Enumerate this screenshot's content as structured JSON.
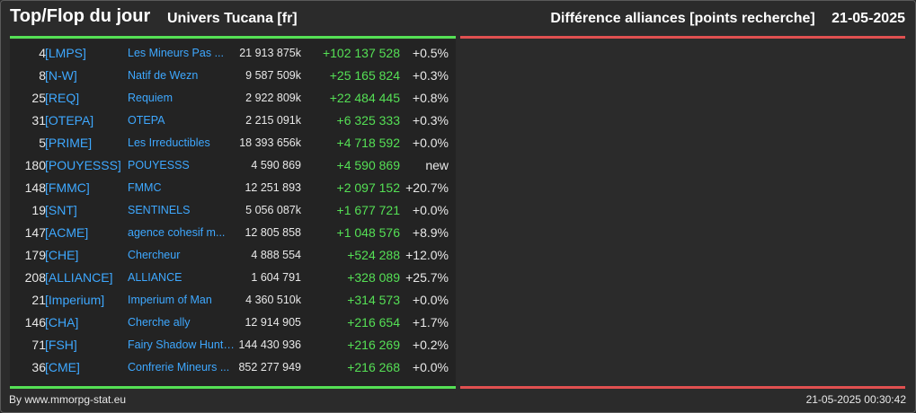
{
  "header": {
    "title": "Top/Flop du jour",
    "universe": "Univers Tucana [fr]",
    "category": "Différence alliances [points recherche]",
    "date": "21-05-2025"
  },
  "rows": [
    {
      "rank": "4",
      "tag": "[LMPS]",
      "name": "Les Mineurs Pas ...",
      "points": "21 913 875k",
      "diff": "+102 137 528",
      "pct": "+0.5%"
    },
    {
      "rank": "8",
      "tag": "[N-W]",
      "name": "Natif de Wezn",
      "points": "9 587 509k",
      "diff": "+25 165 824",
      "pct": "+0.3%"
    },
    {
      "rank": "25",
      "tag": "[REQ]",
      "name": "Requiem",
      "points": "2 922 809k",
      "diff": "+22 484 445",
      "pct": "+0.8%"
    },
    {
      "rank": "31",
      "tag": "[OTEPA]",
      "name": "OTEPA",
      "points": "2 215 091k",
      "diff": "+6 325 333",
      "pct": "+0.3%"
    },
    {
      "rank": "5",
      "tag": "[PRIME]",
      "name": "Les Irreductibles",
      "points": "18 393 656k",
      "diff": "+4 718 592",
      "pct": "+0.0%"
    },
    {
      "rank": "180",
      "tag": "[POUYESSS]",
      "name": "POUYESSS",
      "points": "4 590 869",
      "diff": "+4 590 869",
      "pct": "new"
    },
    {
      "rank": "148",
      "tag": "[FMMC]",
      "name": "FMMC",
      "points": "12 251 893",
      "diff": "+2 097 152",
      "pct": "+20.7%"
    },
    {
      "rank": "19",
      "tag": "[SNT]",
      "name": "SENTINELS",
      "points": "5 056 087k",
      "diff": "+1 677 721",
      "pct": "+0.0%"
    },
    {
      "rank": "147",
      "tag": "[ACME]",
      "name": "agence cohesif m...",
      "points": "12 805 858",
      "diff": "+1 048 576",
      "pct": "+8.9%"
    },
    {
      "rank": "179",
      "tag": "[CHE]",
      "name": "Chercheur",
      "points": "4 888 554",
      "diff": "+524 288",
      "pct": "+12.0%"
    },
    {
      "rank": "208",
      "tag": "[ALLIANCE]",
      "name": "ALLIANCE",
      "points": "1 604 791",
      "diff": "+328 089",
      "pct": "+25.7%"
    },
    {
      "rank": "21",
      "tag": "[Imperium]",
      "name": "Imperium of Man",
      "points": "4 360 510k",
      "diff": "+314 573",
      "pct": "+0.0%"
    },
    {
      "rank": "146",
      "tag": "[CHA]",
      "name": "Cherche ally",
      "points": "12 914 905",
      "diff": "+216 654",
      "pct": "+1.7%"
    },
    {
      "rank": "71",
      "tag": "[FSH]",
      "name": "Fairy Shadow Hunte...",
      "points": "144 430 936",
      "diff": "+216 269",
      "pct": "+0.2%"
    },
    {
      "rank": "36",
      "tag": "[CME]",
      "name": "Confrerie Mineurs ...",
      "points": "852 277 949",
      "diff": "+216 268",
      "pct": "+0.0%"
    }
  ],
  "footer": {
    "source": "By www.mmorpg-stat.eu",
    "timestamp": "21-05-2025 00:30:42"
  },
  "colors": {
    "background": "#2b2b2b",
    "panel": "#232323",
    "top_accent": "#55e055",
    "flop_accent": "#e05050",
    "link": "#3ea8ff"
  }
}
